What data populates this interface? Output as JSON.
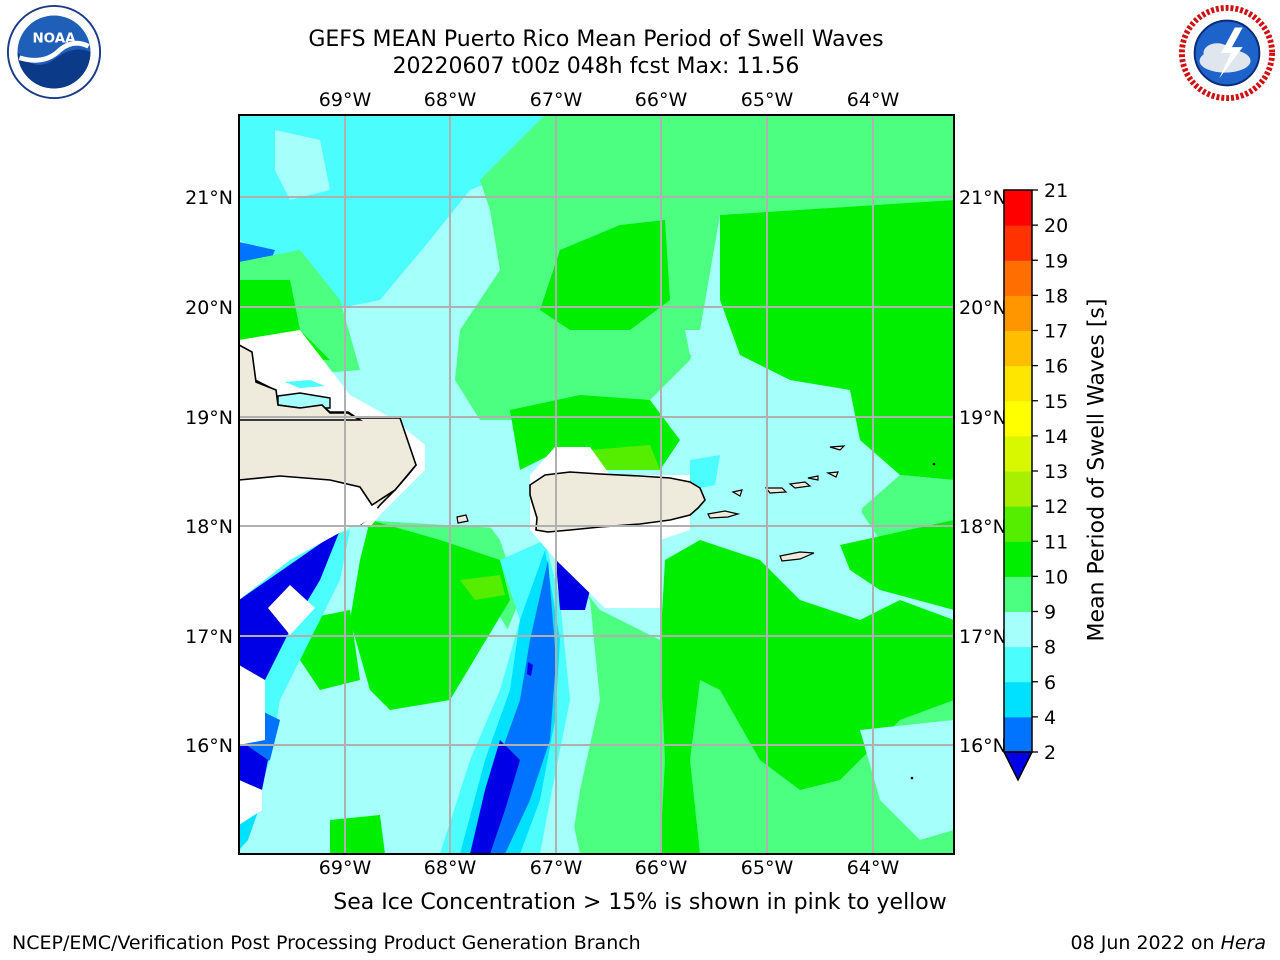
{
  "header": {
    "title_line1": "GEFS MEAN Puerto Rico Mean Period of Swell Waves",
    "title_line2": "20220607 t00z 048h fcst   Max: 11.56"
  },
  "logos": {
    "left": "noaa-logo",
    "right": "nws-logo"
  },
  "map": {
    "lon_labels": [
      "69°W",
      "68°W",
      "67°W",
      "66°W",
      "65°W",
      "64°W"
    ],
    "lat_labels": [
      "21°N",
      "20°N",
      "19°N",
      "18°N",
      "17°N",
      "16°N"
    ],
    "land_color": "#eeeadc",
    "grid_color": "#b0b0b0"
  },
  "colorbar": {
    "label": "Mean Period of Swell Waves [s]",
    "ticks": [
      "2",
      "4",
      "6",
      "8",
      "9",
      "10",
      "11",
      "12",
      "13",
      "14",
      "15",
      "16",
      "17",
      "18",
      "19",
      "20",
      "21"
    ],
    "colors": [
      "#0000e6",
      "#0073ff",
      "#00e0ff",
      "#4cfdfd",
      "#a5fffa",
      "#4dff80",
      "#00ee00",
      "#55ee00",
      "#a8f000",
      "#d8f800",
      "#ffff00",
      "#ffe600",
      "#ffbe00",
      "#ff9600",
      "#ff6e00",
      "#ff3200",
      "#ff0000"
    ]
  },
  "notes": {
    "ice": "Sea Ice Concentration > 15% is shown in pink to yellow"
  },
  "footer": {
    "left": "NCEP/EMC/Verification Post Processing Product Generation Branch",
    "right_date": "08 Jun 2022 on ",
    "right_host": "Hera"
  }
}
